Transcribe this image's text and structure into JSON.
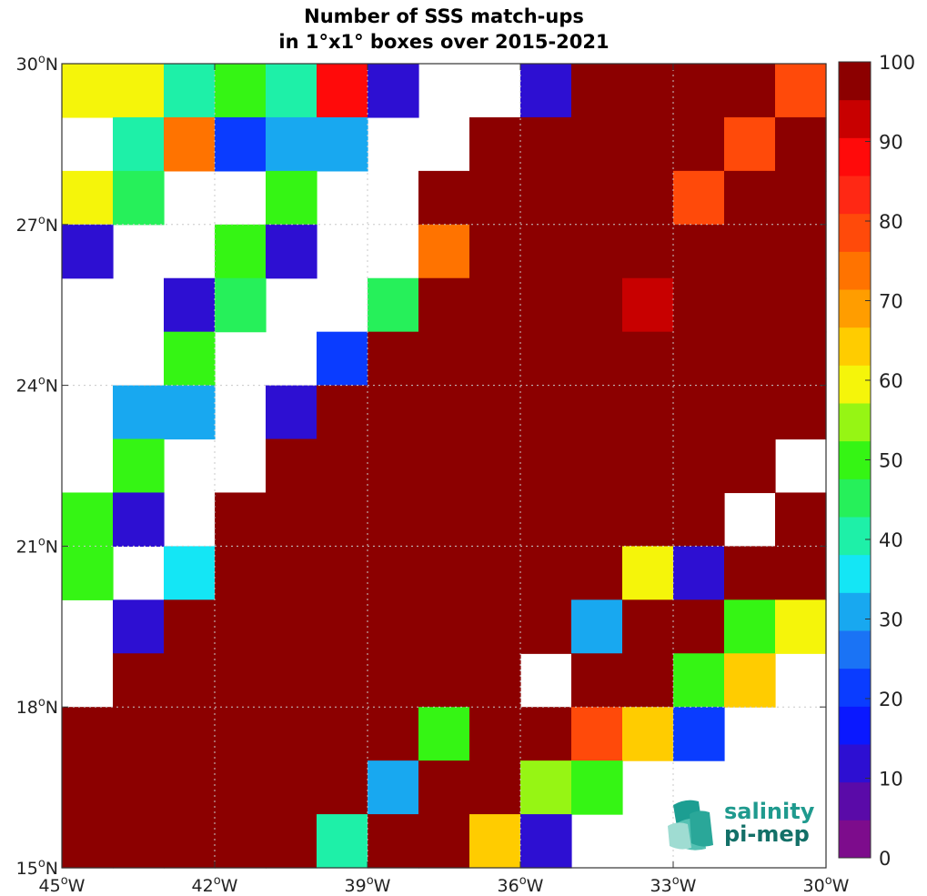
{
  "chart_data": {
    "type": "heatmap",
    "title": [
      "Number of SSS match-ups",
      "in 1°x1° boxes over 2015-2021"
    ],
    "x_ticks": [
      {
        "value": -45,
        "label": "45",
        "hemi": "W"
      },
      {
        "value": -42,
        "label": "42",
        "hemi": "W"
      },
      {
        "value": -39,
        "label": "39",
        "hemi": "W"
      },
      {
        "value": -36,
        "label": "36",
        "hemi": "W"
      },
      {
        "value": -33,
        "label": "33",
        "hemi": "W"
      },
      {
        "value": -30,
        "label": "30",
        "hemi": "W"
      }
    ],
    "y_ticks": [
      {
        "value": 30,
        "label": "30",
        "hemi": "N"
      },
      {
        "value": 27,
        "label": "27",
        "hemi": "N"
      },
      {
        "value": 24,
        "label": "24",
        "hemi": "N"
      },
      {
        "value": 21,
        "label": "21",
        "hemi": "N"
      },
      {
        "value": 18,
        "label": "18",
        "hemi": "N"
      },
      {
        "value": 15,
        "label": "15",
        "hemi": "N"
      }
    ],
    "degree_symbol": "o",
    "xlim": [
      -45,
      -30
    ],
    "ylim": [
      15,
      30
    ],
    "cell_size_deg": 1,
    "grid": "dotted at tick positions",
    "colorbar": {
      "range": [
        0,
        100
      ],
      "ticks": [
        "0",
        "10",
        "20",
        "30",
        "40",
        "50",
        "60",
        "70",
        "80",
        "90",
        "100"
      ],
      "colors": [
        "#7d0c8c",
        "#5a0aa8",
        "#2d0fd2",
        "#0a18ff",
        "#0a3cff",
        "#1a73f5",
        "#18a8f0",
        "#14e6f5",
        "#1ef0a8",
        "#26f05a",
        "#35f514",
        "#96f514",
        "#f5f50a",
        "#ffcc00",
        "#ff9d00",
        "#ff7300",
        "#ff4a0a",
        "#ff2814",
        "#ff0a0a",
        "#c80000",
        "#8c0000"
      ],
      "placement": "right"
    },
    "rows_north_to_south": [
      [
        62,
        62,
        38,
        52,
        38,
        90,
        12,
        null,
        null,
        8,
        100,
        100,
        100,
        100,
        82
      ],
      [
        null,
        38,
        77,
        22,
        28,
        28,
        null,
        null,
        100,
        100,
        100,
        100,
        100,
        82,
        100
      ],
      [
        62,
        43,
        null,
        null,
        52,
        null,
        null,
        100,
        100,
        100,
        100,
        100,
        82,
        100,
        100
      ],
      [
        8,
        null,
        null,
        48,
        8,
        null,
        null,
        77,
        100,
        100,
        100,
        100,
        100,
        100,
        100
      ],
      [
        null,
        null,
        12,
        43,
        null,
        null,
        43,
        100,
        100,
        100,
        100,
        95,
        100,
        100,
        100
      ],
      [
        null,
        null,
        52,
        null,
        null,
        18,
        100,
        100,
        100,
        100,
        100,
        100,
        100,
        100,
        100
      ],
      [
        null,
        28,
        28,
        null,
        8,
        100,
        100,
        100,
        100,
        100,
        100,
        100,
        100,
        100,
        100
      ],
      [
        null,
        52,
        null,
        null,
        100,
        100,
        100,
        100,
        100,
        100,
        100,
        100,
        100,
        100,
        null
      ],
      [
        48,
        8,
        null,
        100,
        100,
        100,
        100,
        100,
        100,
        100,
        100,
        100,
        100,
        null,
        100
      ],
      [
        48,
        null,
        33,
        100,
        100,
        100,
        100,
        100,
        100,
        100,
        100,
        62,
        12,
        100,
        100
      ],
      [
        null,
        12,
        100,
        100,
        100,
        100,
        100,
        100,
        100,
        100,
        28,
        100,
        100,
        52,
        62
      ],
      [
        null,
        100,
        100,
        100,
        100,
        100,
        100,
        100,
        100,
        null,
        100,
        100,
        48,
        67,
        null
      ],
      [
        100,
        100,
        100,
        100,
        100,
        100,
        100,
        52,
        100,
        100,
        82,
        67,
        18,
        null,
        null
      ],
      [
        100,
        100,
        100,
        100,
        100,
        100,
        28,
        100,
        100,
        57,
        48,
        null,
        null,
        null,
        null
      ],
      [
        100,
        100,
        100,
        100,
        100,
        38,
        100,
        100,
        67,
        8,
        null,
        null,
        null,
        null,
        null
      ]
    ]
  },
  "logo": {
    "line1": "salinity",
    "line2": "pi-mep",
    "color_text": "#1d8c84",
    "color_text_dark": "#137068"
  }
}
